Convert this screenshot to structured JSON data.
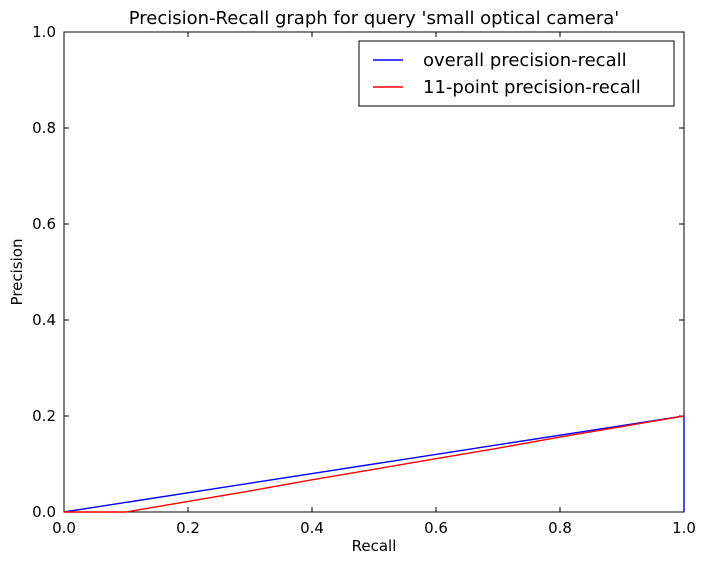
{
  "chart_data": {
    "type": "line",
    "title": "Precision-Recall graph for query 'small optical camera'",
    "xlabel": "Recall",
    "ylabel": "Precision",
    "xlim": [
      0.0,
      1.0
    ],
    "ylim": [
      0.0,
      1.0
    ],
    "xticks": [
      "0.0",
      "0.2",
      "0.4",
      "0.6",
      "0.8",
      "1.0"
    ],
    "yticks": [
      "0.0",
      "0.2",
      "0.4",
      "0.6",
      "0.8",
      "1.0"
    ],
    "grid": false,
    "legend_position": "top-right",
    "series": [
      {
        "name": "overall precision-recall",
        "color": "#0000ff",
        "x": [
          0.0,
          1.0,
          1.0
        ],
        "y": [
          0.0,
          0.2,
          0.0
        ]
      },
      {
        "name": "11-point precision-recall",
        "color": "#ff0000",
        "x": [
          0.0,
          0.1,
          0.2,
          0.3,
          0.4,
          0.5,
          0.6,
          0.7,
          0.8,
          0.9,
          1.0
        ],
        "y": [
          0.0,
          0.0,
          0.022,
          0.044,
          0.067,
          0.089,
          0.111,
          0.133,
          0.156,
          0.178,
          0.2
        ]
      }
    ]
  }
}
